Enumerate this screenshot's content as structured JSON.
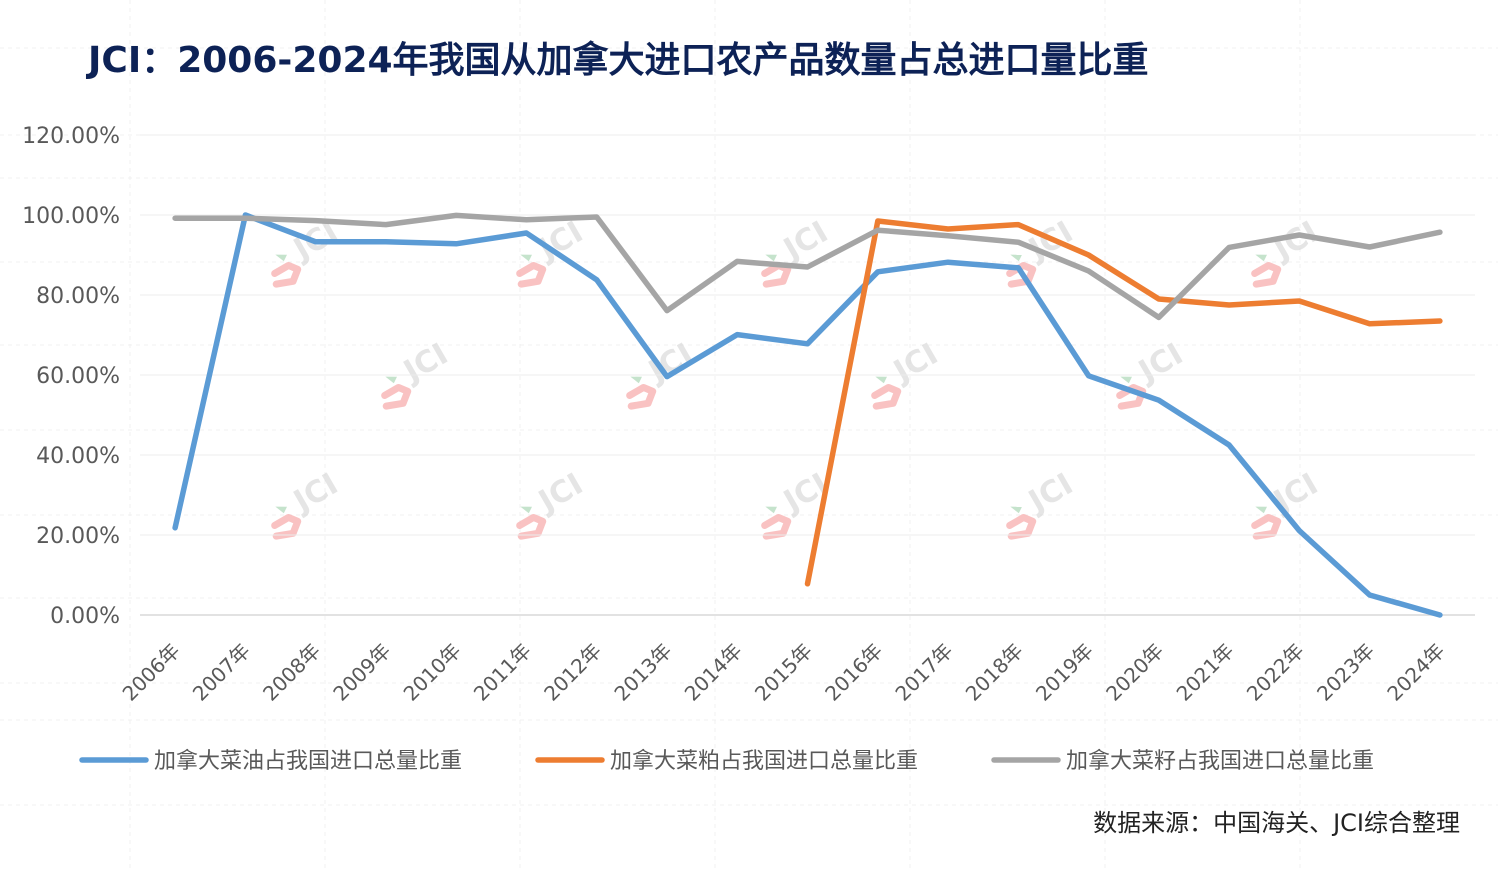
{
  "chart_data": {
    "type": "line",
    "title": "JCI：2006-2024年我国从加拿大进口农产品数量占总进口量比重",
    "categories": [
      "2006年",
      "2007年",
      "2008年",
      "2009年",
      "2010年",
      "2011年",
      "2012年",
      "2013年",
      "2014年",
      "2015年",
      "2016年",
      "2017年",
      "2018年",
      "2019年",
      "2020年",
      "2021年",
      "2022年",
      "2023年",
      "2024年"
    ],
    "y_tick_labels": [
      "0.00%",
      "20.00%",
      "40.00%",
      "60.00%",
      "80.00%",
      "100.00%",
      "120.00%"
    ],
    "ylim": [
      0,
      120
    ],
    "xlabel": "",
    "ylabel": "",
    "grid": true,
    "legend_position": "bottom",
    "series": [
      {
        "name": "加拿大菜油占我国进口总量比重",
        "color": "#5b9bd5",
        "values": [
          21.8,
          100.0,
          93.3,
          93.3,
          92.8,
          95.5,
          83.8,
          59.6,
          70.1,
          67.8,
          85.8,
          88.2,
          86.8,
          59.8,
          53.7,
          42.5,
          21.1,
          5.0,
          0.0
        ]
      },
      {
        "name": "加拿大菜粕占我国进口总量比重",
        "color": "#ed7d31",
        "values": [
          null,
          null,
          null,
          null,
          null,
          null,
          null,
          null,
          null,
          7.8,
          98.5,
          96.5,
          97.6,
          90.0,
          79.0,
          77.5,
          78.5,
          72.8,
          73.5
        ]
      },
      {
        "name": "加拿大菜籽占我国进口总量比重",
        "color": "#a5a5a5",
        "values": [
          99.2,
          99.2,
          98.6,
          97.6,
          99.9,
          98.8,
          99.5,
          76.1,
          88.4,
          87.0,
          96.2,
          94.8,
          93.2,
          86.0,
          74.4,
          91.9,
          95.0,
          92.0,
          95.7
        ]
      }
    ],
    "source_note": "数据来源：中国海关、JCI综合整理"
  },
  "watermark": {
    "text": "JCI"
  }
}
